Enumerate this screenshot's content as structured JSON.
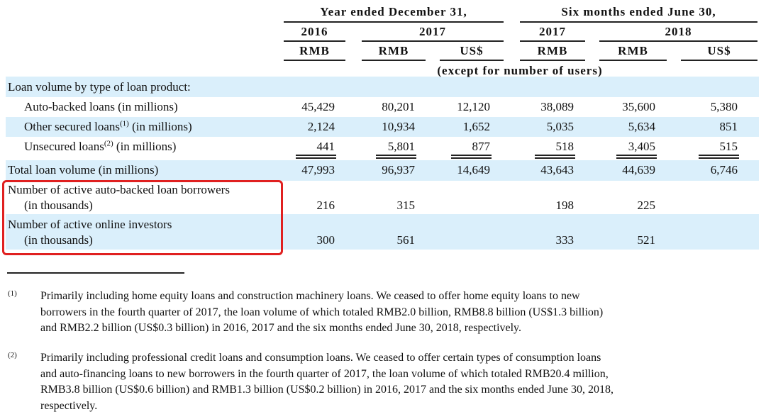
{
  "header": {
    "groups": [
      "Year ended December 31,",
      "Six months ended June 30,"
    ],
    "years": [
      "2016",
      "2017",
      "2017",
      "2018"
    ],
    "currencies": [
      "RMB",
      "RMB",
      "US$",
      "RMB",
      "RMB",
      "US$"
    ],
    "note": "(except for number of users)"
  },
  "table": {
    "section": "Loan volume by type of loan product:",
    "rows": [
      {
        "label": "Auto-backed loans (in millions)",
        "values": [
          "45,429",
          "80,201",
          "12,120",
          "38,089",
          "35,600",
          "5,380"
        ]
      },
      {
        "label": "Other secured loans",
        "note": "(1)",
        "suffix": " (in millions)",
        "values": [
          "2,124",
          "10,934",
          "1,652",
          "5,035",
          "5,634",
          "851"
        ]
      },
      {
        "label": "Unsecured loans",
        "note": "(2)",
        "suffix": " (in millions)",
        "values": [
          "441",
          "5,801",
          "877",
          "518",
          "3,405",
          "515"
        ]
      },
      {
        "label": "Total loan volume (in millions)",
        "values": [
          "47,993",
          "96,937",
          "14,649",
          "43,643",
          "44,639",
          "6,746"
        ]
      },
      {
        "label": "Number of active auto-backed loan borrowers",
        "sublabel": "(in thousands)",
        "values": [
          "216",
          "315",
          null,
          "198",
          "225",
          null
        ]
      },
      {
        "label": "Number of active online investors",
        "sublabel": "(in thousands)",
        "values": [
          "300",
          "561",
          null,
          "333",
          "521",
          null
        ]
      }
    ]
  },
  "footnotes": [
    {
      "mark": "(1)",
      "lines": [
        "Primarily including home equity loans and construction machinery loans. We ceased to offer home equity loans to new",
        "borrowers in the fourth quarter of 2017, the loan volume of which totaled RMB2.0 billion, RMB8.8 billion (US$1.3 billion)",
        "and RMB2.2 billion (US$0.3 billion) in 2016, 2017 and the six months ended June 30, 2018, respectively."
      ]
    },
    {
      "mark": "(2)",
      "lines": [
        "Primarily including professional credit loans and consumption loans. We ceased to offer certain types of consumption loans",
        "and auto-financing loans to new borrowers in the fourth quarter of 2017, the loan volume of which totaled RMB20.4 million,",
        "RMB3.8 billion (US$0.6 billion) and RMB1.3 billion (US$0.2 billion) in 2016, 2017 and the six months ended June 30, 2018,",
        "respectively."
      ]
    }
  ]
}
